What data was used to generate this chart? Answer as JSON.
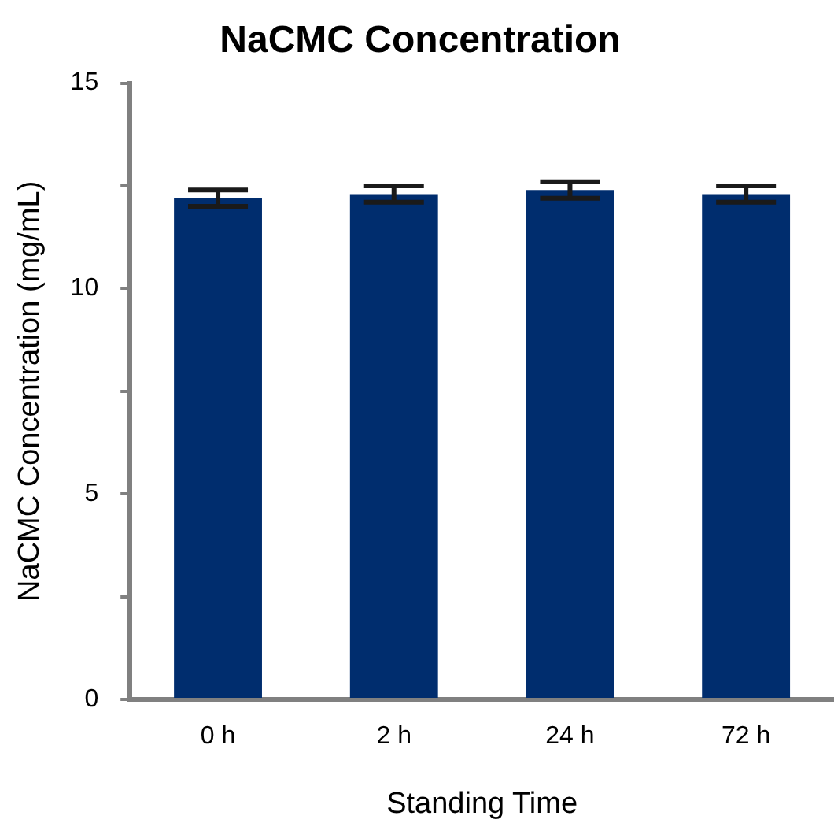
{
  "chart_data": {
    "type": "bar",
    "title": "NaCMC Concentration",
    "xlabel": "Standing Time",
    "ylabel": "NaCMC Concentration (mg/mL)",
    "categories": [
      "0 h",
      "2 h",
      "24 h",
      "72 h"
    ],
    "values": [
      12.2,
      12.3,
      12.4,
      12.3
    ],
    "errors": [
      0.2,
      0.2,
      0.2,
      0.2
    ],
    "color": "#002d6e",
    "ylim": [
      0,
      15
    ],
    "yticks": [
      0,
      {
        "value": 2.5,
        "label": null
      },
      5,
      {
        "value": 7.5,
        "label": null
      },
      10,
      {
        "value": 12.5,
        "label": null
      },
      15
    ],
    "grid": false,
    "legend": false
  }
}
